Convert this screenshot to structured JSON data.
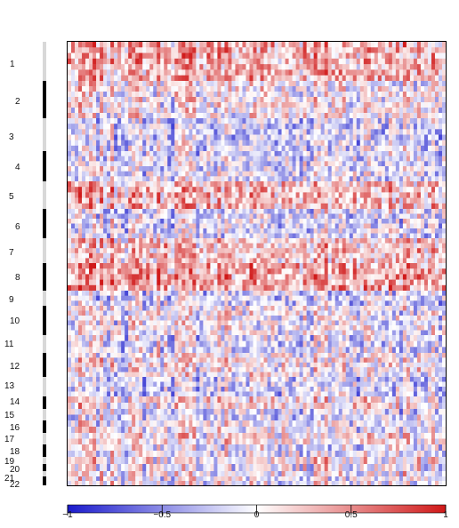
{
  "chart_data": {
    "type": "heatmap",
    "title": "",
    "xlabel": "",
    "ylabel": "",
    "rows": [
      "1",
      "2",
      "3",
      "4",
      "5",
      "6",
      "7",
      "8",
      "9",
      "10",
      "11",
      "12",
      "13",
      "14",
      "15",
      "16",
      "17",
      "18",
      "19",
      "20",
      "21",
      "22"
    ],
    "row_mean_value": [
      0.35,
      0.05,
      -0.15,
      -0.1,
      0.3,
      -0.1,
      0.25,
      0.4,
      -0.15,
      0.0,
      -0.1,
      0.05,
      -0.15,
      0.1,
      -0.1,
      0.0,
      0.1,
      -0.05,
      0.1,
      0.0,
      0.05,
      0.0
    ],
    "colorbar": {
      "min": -1,
      "max": 1,
      "ticks": [
        -1,
        -0.5,
        0,
        0.5,
        1
      ],
      "tick_labels": [
        "−1",
        "−0.5",
        "0",
        "0.5",
        "1"
      ],
      "colors": {
        "low": "#1a1acc",
        "mid": "#ffffff",
        "high": "#d01818"
      }
    },
    "grid": false,
    "legend": "bottom colorbar"
  }
}
